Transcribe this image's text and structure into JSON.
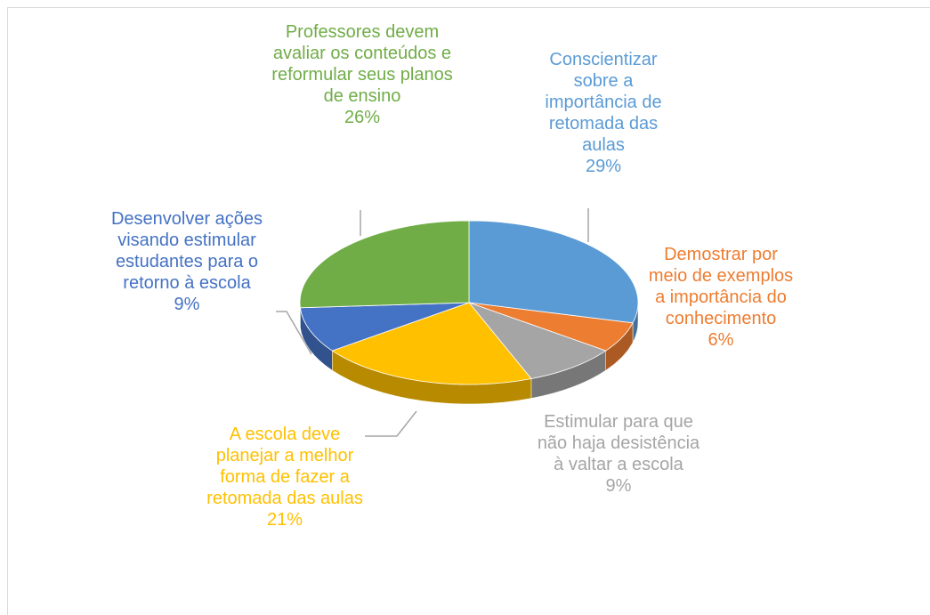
{
  "chart_data": {
    "type": "pie3d",
    "categories": [
      "Conscientizar sobre a importância de retomada das aulas",
      "Demostrar por meio de exemplos a importância do conhecimento",
      "Estimular para que não haja desistência à valtar a escola",
      "A escola deve planejar a melhor forma de fazer a retomada das aulas",
      "Desenvolver ações visando estimular estudantes para o retorno à escola",
      "Professores devem avaliar os conteúdos e reformular seus planos de ensino"
    ],
    "values": [
      29,
      6,
      9,
      21,
      9,
      26
    ],
    "value_labels": [
      "29%",
      "6%",
      "9%",
      "21%",
      "9%",
      "26%"
    ],
    "colors": [
      "#5b9bd5",
      "#ed7d31",
      "#a5a5a5",
      "#ffc000",
      "#4472c4",
      "#70ad47"
    ]
  }
}
